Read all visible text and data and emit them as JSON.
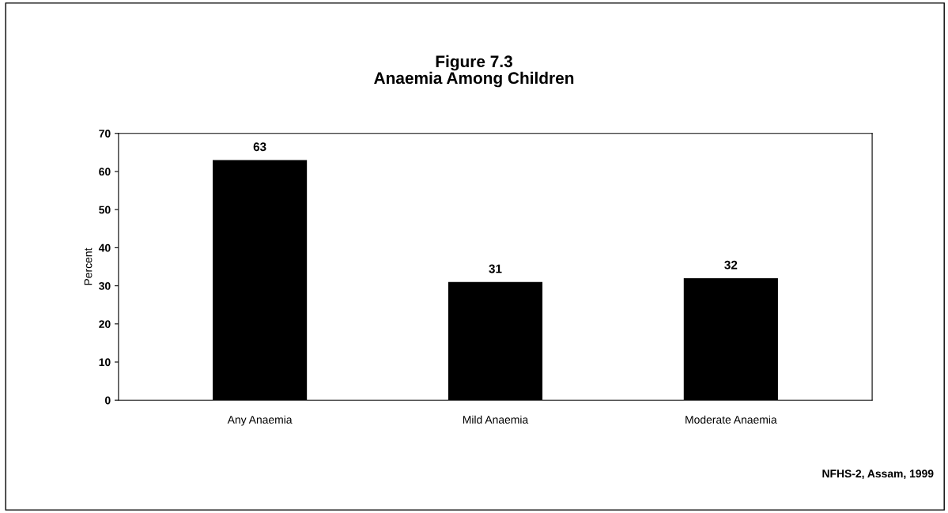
{
  "chart_data": {
    "type": "bar",
    "title": "Figure 7.3\nAnaemia Among Children",
    "ylabel": "Percent",
    "categories": [
      "Any Anaemia",
      "Mild Anaemia",
      "Moderate Anaemia"
    ],
    "values": [
      63,
      31,
      32
    ],
    "color": "#000000",
    "data_labels": true,
    "ylim": [
      0,
      70
    ],
    "yticks": [
      0,
      10,
      20,
      30,
      40,
      50,
      60,
      70
    ],
    "grid": false,
    "legend": false,
    "annotations": [
      "NFHS-2, Assam, 1999"
    ]
  }
}
